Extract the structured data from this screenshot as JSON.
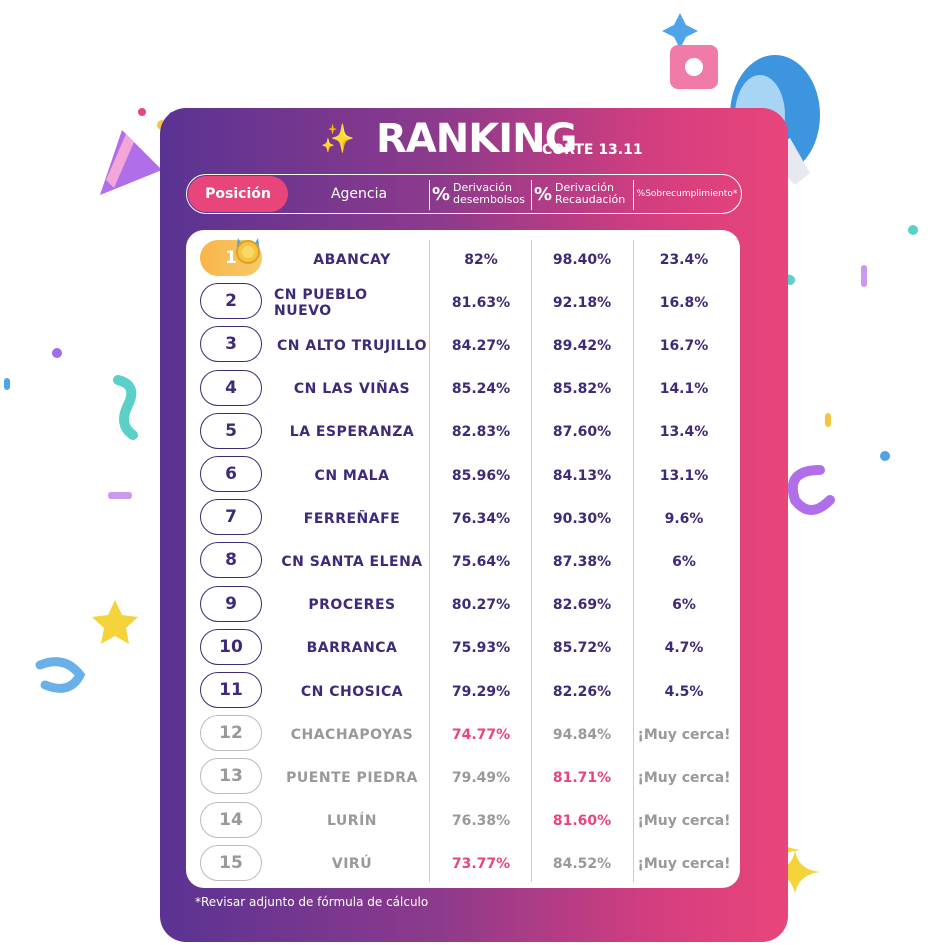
{
  "title": "RANKING",
  "corte": "CORTE 13.11",
  "headers": {
    "posicion": "Posición",
    "agencia": "Agencia",
    "pct": "%",
    "derivacion_desembolsos": "Derivación desembolsos",
    "derivacion_recaudacion": "Derivación Recaudación",
    "sobrecumplimiento": "%Sobrecumplimiento*"
  },
  "rows": [
    {
      "pos": "1",
      "agencia": "ABANCAY",
      "desembolsos": "82%",
      "recaudacion": "98.40%",
      "sobre": "23.4%"
    },
    {
      "pos": "2",
      "agencia": "CN PUEBLO NUEVO",
      "desembolsos": "81.63%",
      "recaudacion": "92.18%",
      "sobre": "16.8%"
    },
    {
      "pos": "3",
      "agencia": "CN ALTO TRUJILLO",
      "desembolsos": "84.27%",
      "recaudacion": "89.42%",
      "sobre": "16.7%"
    },
    {
      "pos": "4",
      "agencia": "CN LAS VIÑAS",
      "desembolsos": "85.24%",
      "recaudacion": "85.82%",
      "sobre": "14.1%"
    },
    {
      "pos": "5",
      "agencia": "LA ESPERANZA",
      "desembolsos": "82.83%",
      "recaudacion": "87.60%",
      "sobre": "13.4%"
    },
    {
      "pos": "6",
      "agencia": "CN MALA",
      "desembolsos": "85.96%",
      "recaudacion": "84.13%",
      "sobre": "13.1%"
    },
    {
      "pos": "7",
      "agencia": "FERREÑAFE",
      "desembolsos": "76.34%",
      "recaudacion": "90.30%",
      "sobre": "9.6%"
    },
    {
      "pos": "8",
      "agencia": "CN SANTA ELENA",
      "desembolsos": "75.64%",
      "recaudacion": "87.38%",
      "sobre": "6%"
    },
    {
      "pos": "9",
      "agencia": "PROCERES",
      "desembolsos": "80.27%",
      "recaudacion": "82.69%",
      "sobre": "6%"
    },
    {
      "pos": "10",
      "agencia": "BARRANCA",
      "desembolsos": "75.93%",
      "recaudacion": "85.72%",
      "sobre": "4.7%"
    },
    {
      "pos": "11",
      "agencia": "CN CHOSICA",
      "desembolsos": "79.29%",
      "recaudacion": "82.26%",
      "sobre": "4.5%"
    },
    {
      "pos": "12",
      "agencia": "CHACHAPOYAS",
      "desembolsos": "74.77%",
      "recaudacion": "94.84%",
      "sobre": "¡Muy cerca!"
    },
    {
      "pos": "13",
      "agencia": "PUENTE PIEDRA",
      "desembolsos": "79.49%",
      "recaudacion": "81.71%",
      "sobre": "¡Muy cerca!"
    },
    {
      "pos": "14",
      "agencia": "LURÍN",
      "desembolsos": "76.38%",
      "recaudacion": "81.60%",
      "sobre": "¡Muy cerca!"
    },
    {
      "pos": "15",
      "agencia": "VIRÚ",
      "desembolsos": "73.77%",
      "recaudacion": "84.52%",
      "sobre": "¡Muy cerca!"
    }
  ],
  "footnote": "*Revisar adjunto de fórmula de cálculo",
  "colors": {
    "purple": "#5a3392",
    "pink": "#e8457b",
    "text": "#3e2a78",
    "grey": "#999999",
    "gold": "#f9b548"
  },
  "icons": [
    "sparkle-icon",
    "medal-icon",
    "party-popper-icon",
    "megaphone-icon",
    "star-icon",
    "confetti-icon"
  ]
}
